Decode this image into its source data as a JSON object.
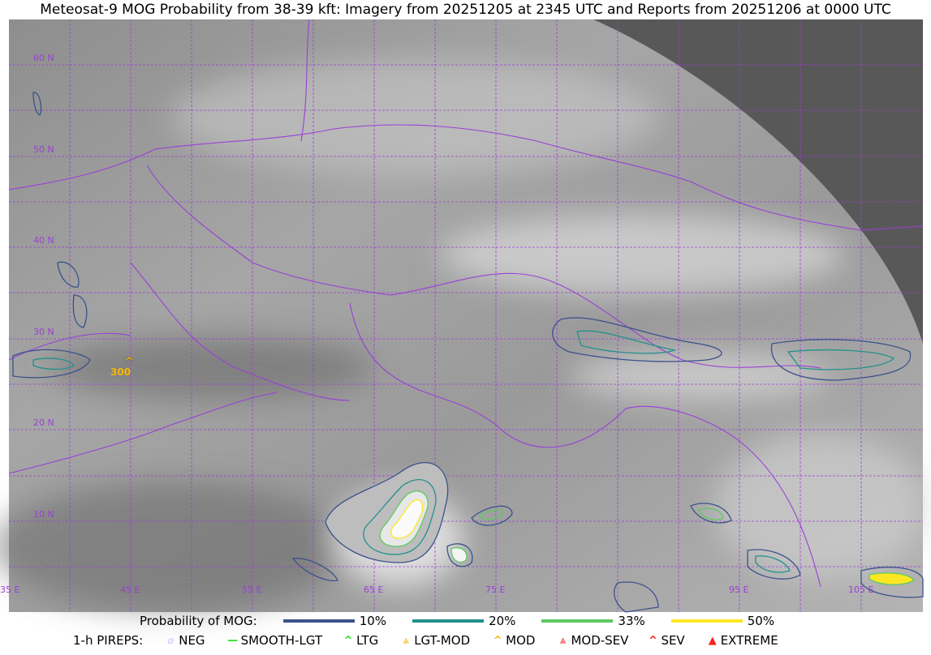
{
  "title": "Meteosat-9 MOG Probability from 38-39 kft: Imagery from 20251205 at 2345 UTC and Reports from 20251206 at 0000 UTC",
  "map": {
    "lat_labels": [
      "60 N",
      "50 N",
      "40 N",
      "30 N",
      "20 N",
      "10 N"
    ],
    "lon_labels": [
      "35 E",
      "45 E",
      "55 E",
      "65 E",
      "75 E",
      "95 E",
      "105 E"
    ],
    "pirep_marker": {
      "altitude_label": "300",
      "type": "MOD",
      "color": "#f5b800"
    },
    "colors": {
      "grid": "#9a3fd6",
      "borders": "#9a3fd6",
      "space": "#585858"
    }
  },
  "legend": {
    "probability_title": "Probability of MOG:",
    "probability": [
      {
        "label": "10%",
        "color": "#3b528b"
      },
      {
        "label": "20%",
        "color": "#21918c"
      },
      {
        "label": "33%",
        "color": "#5ec962"
      },
      {
        "label": "50%",
        "color": "#fde725"
      }
    ],
    "pireps_title": "1-h PIREPS:",
    "pireps": [
      {
        "label": "NEG",
        "icon": "neg-icon",
        "glyph": "⌀",
        "color": "#c8c8ff"
      },
      {
        "label": "SMOOTH-LGT",
        "icon": "smooth-lgt-icon",
        "glyph": "—",
        "color": "#22e022"
      },
      {
        "label": "LTG",
        "icon": "ltg-icon",
        "glyph": "^",
        "color": "#22e022"
      },
      {
        "label": "LGT-MOD",
        "icon": "lgt-mod-icon",
        "glyph": "⩓",
        "color": "#f5b800"
      },
      {
        "label": "MOD",
        "icon": "mod-icon",
        "glyph": "^",
        "color": "#f5b800"
      },
      {
        "label": "MOD-SEV",
        "icon": "mod-sev-icon",
        "glyph": "⩓",
        "color": "#ff2020"
      },
      {
        "label": "SEV",
        "icon": "sev-icon",
        "glyph": "^",
        "color": "#ff2020"
      },
      {
        "label": "EXTREME",
        "icon": "extreme-icon",
        "glyph": "▲",
        "color": "#ff2020"
      }
    ]
  }
}
